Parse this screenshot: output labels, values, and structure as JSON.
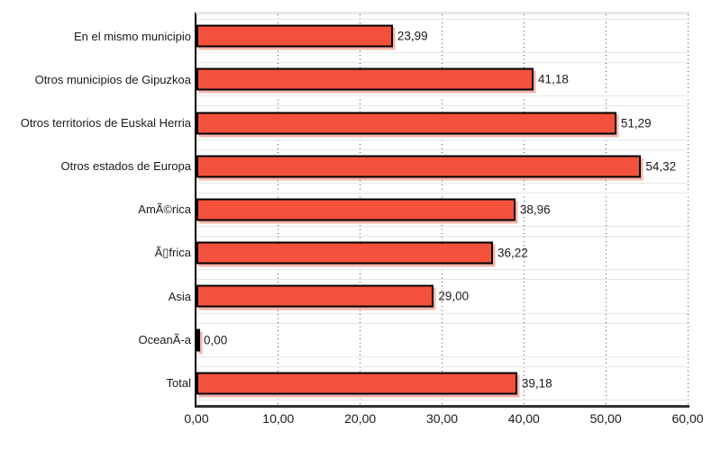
{
  "chart_data": {
    "type": "bar",
    "orientation": "horizontal",
    "title": "",
    "xlabel": "",
    "ylabel": "",
    "categories": [
      "En el mismo municipio",
      "Otros municipios de Gipuzkoa",
      "Otros territorios de Euskal Herria",
      "Otros estados de Europa",
      "AmÃ©rica",
      "Ã▯frica",
      "Asia",
      "OceanÃ-a",
      "Total"
    ],
    "values": [
      23.99,
      41.18,
      51.29,
      54.32,
      38.96,
      36.22,
      29.0,
      0.0,
      39.18
    ],
    "value_labels": [
      "23,99",
      "41,18",
      "51,29",
      "54,32",
      "38,96",
      "36,22",
      "29,00",
      "0,00",
      "39,18"
    ],
    "x_ticks": [
      "0,00",
      "10,00",
      "20,00",
      "30,00",
      "40,00",
      "50,00",
      "60,00"
    ],
    "xlim": [
      0,
      60
    ],
    "grid": "vertical-dotted",
    "legend": "none",
    "colors": {
      "bar_fill": "#f4513c",
      "bar_border": "#000000",
      "bar_shadow": "#f6b5a8",
      "grid_dot": "#4d4d4d",
      "plot_border_top": "#e8e8e8",
      "row_line": "#e7e7e7",
      "x_axis_line": "#333333",
      "y_axis_line": "#000000",
      "text": "#1a1a1a",
      "background": "#ffffff"
    }
  }
}
